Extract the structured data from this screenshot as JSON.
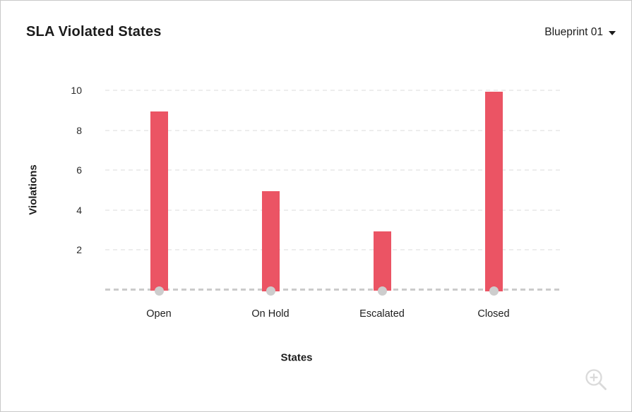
{
  "header": {
    "title": "SLA Violated States",
    "dropdown": {
      "label": "Blueprint 01"
    }
  },
  "chart_data": {
    "type": "bar",
    "title": "SLA Violated States",
    "categories": [
      "Open",
      "On Hold",
      "Escalated",
      "Closed"
    ],
    "values": [
      9,
      5,
      3,
      10
    ],
    "xlabel": "States",
    "ylabel": "Violations",
    "ylim": [
      0,
      10
    ],
    "yticks": [
      2,
      4,
      6,
      8,
      10
    ],
    "grid": "horizontal-dashed",
    "legend": "none",
    "colors": {
      "bar": "#eb5464",
      "gridline": "#ededed",
      "baseline": "#cbcbcb",
      "base_dot": "#cdcdcd",
      "text": "#1d1d1d"
    }
  },
  "icons": {
    "dropdown_caret": "chevron-down",
    "zoom_control": "zoom-in-magnifier"
  }
}
